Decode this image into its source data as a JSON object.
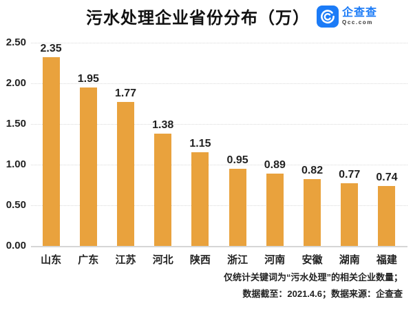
{
  "header": {
    "title": "污水处理企业省份分布（万）",
    "logo": {
      "name": "企查查",
      "domain": "Qcc.com",
      "brand_color": "#1B7BF7",
      "icon": "qcc-circle-icon"
    }
  },
  "chart_data": {
    "type": "bar",
    "title": "污水处理企业省份分布（万）",
    "categories": [
      "山东",
      "广东",
      "江苏",
      "河北",
      "陕西",
      "浙江",
      "河南",
      "安徽",
      "湖南",
      "福建"
    ],
    "values": [
      2.35,
      1.95,
      1.77,
      1.38,
      1.15,
      0.95,
      0.89,
      0.82,
      0.77,
      0.74
    ],
    "data_labels": [
      "2.35",
      "1.95",
      "1.77",
      "1.38",
      "1.15",
      "0.95",
      "0.89",
      "0.82",
      "0.77",
      "0.74"
    ],
    "xlabel": "",
    "ylabel": "",
    "ylim": [
      0,
      2.5
    ],
    "yticks": [
      0,
      0.5,
      1,
      1.5,
      2,
      2.5
    ],
    "ytick_labels": [
      "0.00",
      "0.50",
      "1.00",
      "1.50",
      "2.00",
      "2.50"
    ],
    "bar_color": "#E9A23D",
    "grid": true,
    "grid_style": "dotted",
    "legend": false
  },
  "footer": {
    "line1": "仅统计关键词为“污水处理”的相关企业数量；",
    "line2": "数据截至：2021.4.6；数据来源：企查查"
  },
  "colors": {
    "bar": "#E9A23D",
    "gridline": "#D9D9D9",
    "axis_line": "#D6D6D6",
    "text": "#222222",
    "brand_blue": "#1B7BF7"
  }
}
